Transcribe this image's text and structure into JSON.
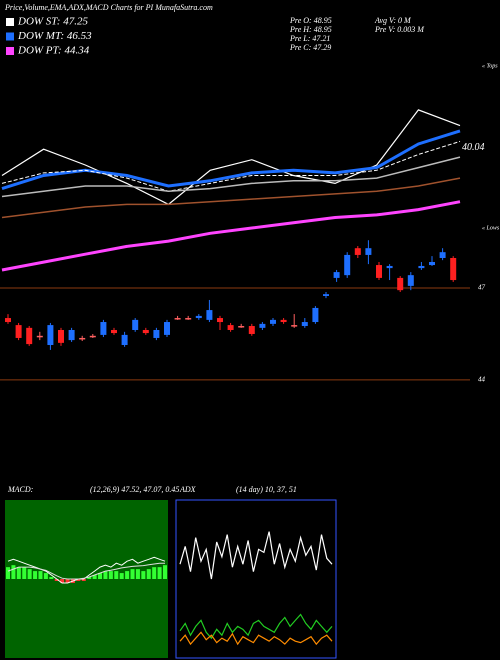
{
  "header": {
    "title": "Price,Volume,EMA,ADX,MACD Charts for PI MunafaSutra.com",
    "dow": [
      {
        "label": "DOW ST: 47.25",
        "color": "#ffffff"
      },
      {
        "label": "DOW MT: 46.53",
        "color": "#1e6fff"
      },
      {
        "label": "DOW PT: 44.34",
        "color": "#ff44ff"
      }
    ],
    "prev": [
      "Pre  O: 48.95",
      "Pre  H: 48.95",
      "Pre  L: 47.21",
      "Pre  C: 47.29"
    ],
    "volume": [
      "Avg V: 0  M",
      "Pre  V: 0.003 M"
    ]
  },
  "chart_data": [
    {
      "type": "line",
      "ylim": [
        42,
        50
      ],
      "marker_label": "40.04",
      "marker_value": 46.65,
      "tops_label": "« Tops",
      "lows_label": "« Lows",
      "series": [
        {
          "color": "#ffffff",
          "width": 1.2,
          "values": [
            45.6,
            46.6,
            46.0,
            45.3,
            44.5,
            45.8,
            46.2,
            45.6,
            45.3,
            46.0,
            48.1,
            47.5
          ]
        },
        {
          "color": "#1e6fff",
          "width": 3,
          "values": [
            45.1,
            45.6,
            45.8,
            45.6,
            45.2,
            45.4,
            45.7,
            45.8,
            45.7,
            45.9,
            46.8,
            47.3
          ]
        },
        {
          "color": "#ffffff",
          "width": 1,
          "dash": true,
          "values": [
            45.3,
            45.7,
            45.8,
            45.5,
            45.0,
            45.3,
            45.6,
            45.6,
            45.6,
            45.8,
            46.4,
            46.9
          ]
        },
        {
          "color": "#bbbbbb",
          "width": 1.5,
          "values": [
            44.8,
            45.0,
            45.2,
            45.2,
            45.0,
            45.1,
            45.3,
            45.4,
            45.4,
            45.5,
            45.9,
            46.3
          ]
        },
        {
          "color": "#a0522d",
          "width": 1.5,
          "values": [
            44.0,
            44.2,
            44.4,
            44.5,
            44.5,
            44.6,
            44.7,
            44.8,
            44.9,
            45.0,
            45.2,
            45.5
          ]
        },
        {
          "color": "#ff44ff",
          "width": 3,
          "values": [
            42.0,
            42.3,
            42.6,
            42.9,
            43.1,
            43.4,
            43.6,
            43.8,
            44.0,
            44.1,
            44.3,
            44.6
          ]
        }
      ]
    },
    {
      "type": "candlestick",
      "ylim": [
        43.9,
        48.6
      ],
      "yticks": [
        47,
        44
      ],
      "grid_color": "#8b3a0f",
      "up_color": "#1e6fff",
      "down_color": "#ff2020",
      "flat_color": "#ff6060",
      "open": [
        46.02,
        45.79,
        45.7,
        45.44,
        45.14,
        45.63,
        45.3,
        45.37,
        45.44,
        45.47,
        45.63,
        45.14,
        45.63,
        45.63,
        45.37,
        45.47,
        46.02,
        46.02,
        46.02,
        45.96,
        46.02,
        45.79,
        45.76,
        45.76,
        45.7,
        45.83,
        45.96,
        45.79,
        45.76,
        45.89,
        46.74,
        47.33,
        47.42,
        48.3,
        48.08,
        47.75,
        47.65,
        47.33,
        47.07,
        47.65,
        47.75,
        47.98,
        47.98
      ],
      "close": [
        45.89,
        45.37,
        45.17,
        45.44,
        45.79,
        45.21,
        45.63,
        45.37,
        45.44,
        45.89,
        45.53,
        45.47,
        45.96,
        45.53,
        45.63,
        45.89,
        46.02,
        46.02,
        46.09,
        46.28,
        45.89,
        45.63,
        45.76,
        45.5,
        45.83,
        45.96,
        45.89,
        45.79,
        45.89,
        46.35,
        46.8,
        47.52,
        48.08,
        48.08,
        48.3,
        47.33,
        47.72,
        46.93,
        47.42,
        47.72,
        47.85,
        48.17,
        47.26
      ],
      "high": [
        46.15,
        45.86,
        45.76,
        45.57,
        45.86,
        45.7,
        45.7,
        45.44,
        45.5,
        45.96,
        45.7,
        45.57,
        46.02,
        45.7,
        45.7,
        45.96,
        46.09,
        46.09,
        46.15,
        46.61,
        46.09,
        45.86,
        45.83,
        45.83,
        45.89,
        46.02,
        46.02,
        46.15,
        46.02,
        46.41,
        46.87,
        47.59,
        48.17,
        48.37,
        48.56,
        47.85,
        47.78,
        47.39,
        47.52,
        47.85,
        48.04,
        48.3,
        48.04
      ],
      "low": [
        45.83,
        45.3,
        45.11,
        45.3,
        44.98,
        45.11,
        45.24,
        45.27,
        45.37,
        45.4,
        45.47,
        45.08,
        45.57,
        45.47,
        45.3,
        45.4,
        45.96,
        45.96,
        45.96,
        45.89,
        45.63,
        45.57,
        45.7,
        45.44,
        45.63,
        45.76,
        45.83,
        45.7,
        45.7,
        45.83,
        46.67,
        47.2,
        47.33,
        47.98,
        47.78,
        47.26,
        47.26,
        46.87,
        46.93,
        47.59,
        47.72,
        47.91,
        47.2
      ]
    },
    {
      "type": "macd",
      "label": "MACD:",
      "params": "(12,26,9) 47.52, 47.07, 0.45",
      "ylim": [
        -2,
        2
      ],
      "background": "#006400",
      "hist_color": "#33ff33",
      "neg_color": "#ff3333",
      "hist": [
        0.3,
        0.35,
        0.3,
        0.3,
        0.25,
        0.2,
        0.2,
        0.15,
        0.05,
        -0.05,
        -0.1,
        -0.1,
        -0.1,
        -0.05,
        -0.05,
        0.05,
        0.1,
        0.15,
        0.2,
        0.2,
        0.2,
        0.15,
        0.2,
        0.25,
        0.25,
        0.2,
        0.25,
        0.3,
        0.3,
        0.35
      ],
      "macd": [
        0.45,
        0.5,
        0.45,
        0.4,
        0.35,
        0.3,
        0.25,
        0.2,
        0.1,
        0.0,
        -0.1,
        -0.1,
        -0.05,
        0.0,
        0.0,
        0.1,
        0.2,
        0.3,
        0.35,
        0.3,
        0.4,
        0.35,
        0.45,
        0.5,
        0.4,
        0.45,
        0.5,
        0.55,
        0.5,
        0.45
      ],
      "signal": [
        0.2,
        0.25,
        0.3,
        0.3,
        0.3,
        0.28,
        0.25,
        0.22,
        0.15,
        0.08,
        0.02,
        0.0,
        0.0,
        0.0,
        0.02,
        0.05,
        0.1,
        0.15,
        0.2,
        0.22,
        0.25,
        0.28,
        0.3,
        0.32,
        0.33,
        0.34,
        0.36,
        0.38,
        0.4,
        0.4
      ]
    },
    {
      "type": "adx",
      "label": "ADX",
      "params": "(14 day) 10, 37, 51",
      "ylim": [
        0,
        100
      ],
      "border": "#3355ff",
      "series": [
        {
          "color": "#ffffff",
          "values": [
            60,
            72,
            55,
            78,
            62,
            70,
            50,
            75,
            65,
            80,
            58,
            72,
            60,
            76,
            55,
            70,
            68,
            82,
            60,
            74,
            58,
            70,
            62,
            78,
            66,
            72,
            56,
            80,
            64,
            60
          ]
        },
        {
          "color": "#22cc22",
          "values": [
            15,
            20,
            12,
            18,
            22,
            14,
            10,
            16,
            12,
            20,
            14,
            18,
            16,
            12,
            20,
            22,
            18,
            16,
            14,
            20,
            24,
            18,
            22,
            26,
            20,
            16,
            22,
            18,
            14,
            18
          ]
        },
        {
          "color": "#ff8c00",
          "values": [
            8,
            12,
            6,
            10,
            14,
            9,
            12,
            7,
            10,
            8,
            13,
            6,
            11,
            9,
            7,
            12,
            10,
            8,
            11,
            9,
            6,
            10,
            8,
            7,
            9,
            11,
            6,
            10,
            12,
            8
          ]
        }
      ]
    }
  ]
}
